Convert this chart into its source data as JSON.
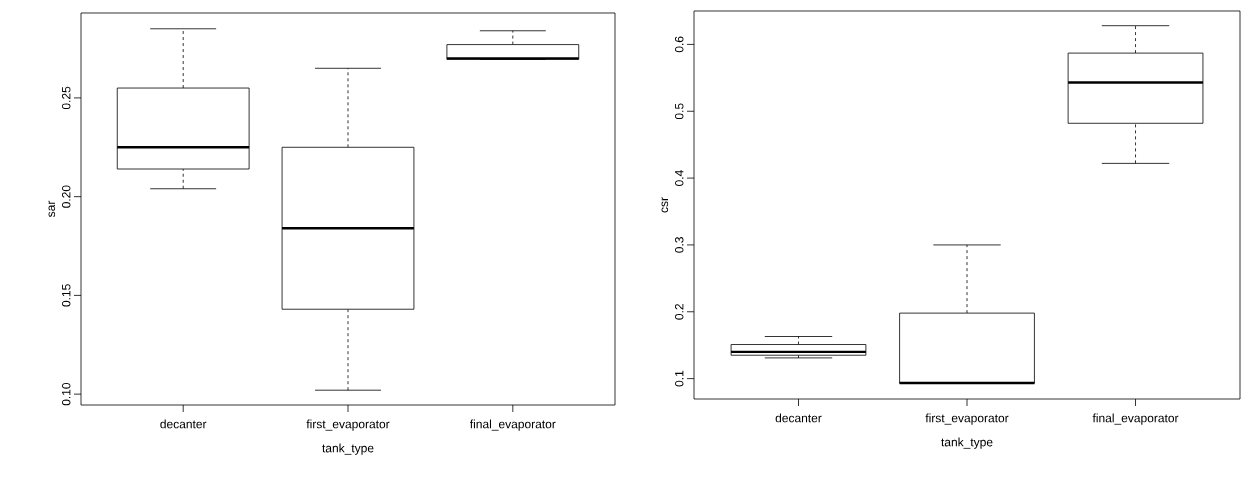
{
  "chart_data": [
    {
      "type": "box",
      "xlabel": "tank_type",
      "ylabel": "sar",
      "categories": [
        "decanter",
        "first_evaporator",
        "final_evaporator"
      ],
      "boxes": [
        {
          "low": 0.204,
          "q1": 0.214,
          "median": 0.225,
          "q3": 0.255,
          "high": 0.285
        },
        {
          "low": 0.102,
          "q1": 0.143,
          "median": 0.184,
          "q3": 0.225,
          "high": 0.265
        },
        {
          "low": 0.2695,
          "q1": 0.2695,
          "median": 0.27,
          "q3": 0.277,
          "high": 0.284
        }
      ],
      "ylim": [
        0.0945,
        0.293
      ],
      "yticks": [
        {
          "value": 0.1,
          "label": "0.10"
        },
        0.15,
        {
          "value": 0.2,
          "label": "0.20"
        },
        0.25
      ]
    },
    {
      "type": "box",
      "xlabel": "tank_type",
      "ylabel": "csr",
      "categories": [
        "decanter",
        "first_evaporator",
        "final_evaporator"
      ],
      "boxes": [
        {
          "low": 0.131,
          "q1": 0.135,
          "median": 0.14,
          "q3": 0.151,
          "high": 0.163
        },
        {
          "low": 0.093,
          "q1": 0.093,
          "median": 0.0935,
          "q3": 0.198,
          "high": 0.3
        },
        {
          "low": 0.422,
          "q1": 0.482,
          "median": 0.543,
          "q3": 0.587,
          "high": 0.628
        }
      ],
      "ylim": [
        0.0695,
        0.65
      ],
      "yticks": [
        0.1,
        0.2,
        0.3,
        0.4,
        0.5,
        0.6
      ]
    }
  ]
}
